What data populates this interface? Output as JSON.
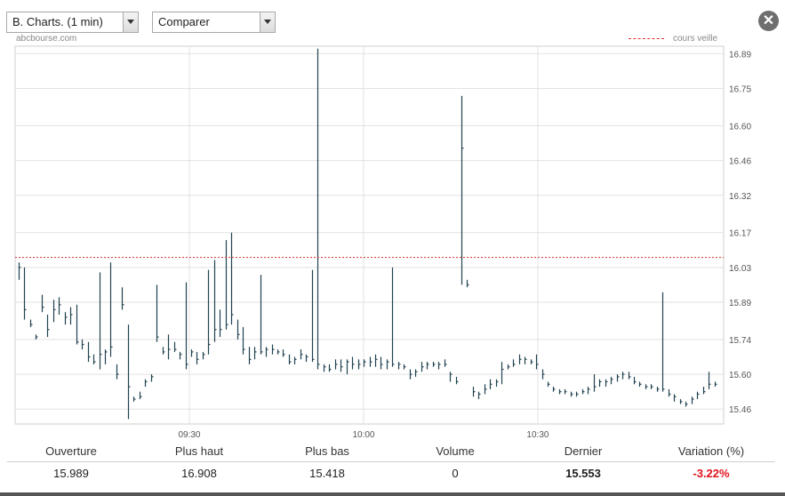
{
  "controls": {
    "period_select": "B. Charts. (1 min)",
    "compare_select": "Comparer"
  },
  "source": "abcbourse.com",
  "legend": {
    "label": "cours veille"
  },
  "chart_data": {
    "type": "bar",
    "subtype": "high-low-close (intraday, 1 min)",
    "y_ticks": [
      16.89,
      16.75,
      16.6,
      16.46,
      16.32,
      16.17,
      16.03,
      15.89,
      15.74,
      15.6,
      15.46
    ],
    "ylim": [
      15.4,
      16.92
    ],
    "x_ticks": [
      "09:30",
      "10:00",
      "10:30"
    ],
    "x_range_minutes": [
      0,
      122
    ],
    "x_tick_minutes": [
      30,
      60,
      90
    ],
    "previous_close": 16.07,
    "colors": {
      "series": "#21424f",
      "previous_close": "#d32f2f",
      "grid": "#e2e2e2"
    },
    "grid": true,
    "legend_position": "top-right",
    "bars_hlc": [
      [
        16.05,
        15.98,
        16.03
      ],
      [
        16.03,
        15.82,
        15.86
      ],
      [
        15.82,
        15.79,
        15.8
      ],
      [
        15.76,
        15.74,
        15.75
      ],
      [
        15.92,
        15.85,
        15.87
      ],
      [
        15.84,
        15.75,
        15.78
      ],
      [
        15.9,
        15.81,
        15.86
      ],
      [
        15.91,
        15.84,
        15.88
      ],
      [
        15.85,
        15.8,
        15.83
      ],
      [
        15.87,
        15.8,
        15.84
      ],
      [
        15.88,
        15.72,
        15.73
      ],
      [
        15.74,
        15.7,
        15.72
      ],
      [
        15.73,
        15.65,
        15.67
      ],
      [
        15.68,
        15.64,
        15.65
      ],
      [
        16.01,
        15.62,
        15.68
      ],
      [
        15.7,
        15.64,
        15.69
      ],
      [
        16.05,
        15.67,
        15.71
      ],
      [
        15.64,
        15.58,
        15.6
      ],
      [
        15.95,
        15.86,
        15.88
      ],
      [
        15.8,
        15.42,
        15.55
      ],
      [
        15.51,
        15.49,
        15.5
      ],
      [
        15.53,
        15.5,
        15.51
      ],
      [
        15.58,
        15.55,
        15.57
      ],
      [
        15.6,
        15.57,
        15.59
      ],
      [
        15.96,
        15.73,
        15.75
      ],
      [
        15.71,
        15.68,
        15.69
      ],
      [
        15.76,
        15.66,
        15.7
      ],
      [
        15.73,
        15.69,
        15.7
      ],
      [
        15.69,
        15.66,
        15.68
      ],
      [
        15.97,
        15.62,
        15.64
      ],
      [
        15.7,
        15.67,
        15.69
      ],
      [
        15.69,
        15.64,
        15.66
      ],
      [
        15.69,
        15.66,
        15.68
      ],
      [
        16.02,
        15.68,
        15.72
      ],
      [
        16.06,
        15.73,
        15.78
      ],
      [
        15.86,
        15.75,
        15.78
      ],
      [
        16.14,
        15.78,
        15.8
      ],
      [
        16.17,
        15.8,
        15.84
      ],
      [
        15.82,
        15.74,
        15.76
      ],
      [
        15.79,
        15.68,
        15.7
      ],
      [
        15.71,
        15.64,
        15.66
      ],
      [
        15.71,
        15.66,
        15.69
      ],
      [
        16.0,
        15.68,
        15.69
      ],
      [
        15.71,
        15.67,
        15.7
      ],
      [
        15.72,
        15.68,
        15.7
      ],
      [
        15.7,
        15.68,
        15.69
      ],
      [
        15.7,
        15.67,
        15.68
      ],
      [
        15.68,
        15.64,
        15.65
      ],
      [
        15.67,
        15.64,
        15.66
      ],
      [
        15.7,
        15.66,
        15.68
      ],
      [
        15.68,
        15.65,
        15.67
      ],
      [
        16.02,
        15.65,
        15.66
      ],
      [
        16.91,
        15.62,
        15.64
      ],
      [
        15.64,
        15.61,
        15.63
      ],
      [
        15.64,
        15.61,
        15.62
      ],
      [
        15.66,
        15.62,
        15.64
      ],
      [
        15.66,
        15.61,
        15.63
      ],
      [
        15.66,
        15.6,
        15.65
      ],
      [
        15.67,
        15.62,
        15.64
      ],
      [
        15.66,
        15.62,
        15.64
      ],
      [
        15.66,
        15.63,
        15.65
      ],
      [
        15.67,
        15.63,
        15.65
      ],
      [
        15.68,
        15.63,
        15.66
      ],
      [
        15.67,
        15.62,
        15.64
      ],
      [
        15.66,
        15.62,
        15.65
      ],
      [
        16.03,
        15.63,
        15.64
      ],
      [
        15.65,
        15.62,
        15.64
      ],
      [
        15.64,
        15.62,
        15.63
      ],
      [
        15.62,
        15.58,
        15.6
      ],
      [
        15.62,
        15.59,
        15.61
      ],
      [
        15.65,
        15.61,
        15.63
      ],
      [
        15.65,
        15.62,
        15.64
      ],
      [
        15.65,
        15.63,
        15.64
      ],
      [
        15.65,
        15.62,
        15.64
      ],
      [
        15.66,
        15.63,
        15.64
      ],
      [
        15.61,
        15.57,
        15.6
      ],
      [
        15.59,
        15.56,
        15.57
      ],
      [
        16.72,
        15.96,
        16.51
      ],
      [
        15.98,
        15.95,
        15.96
      ],
      [
        15.55,
        15.51,
        15.53
      ],
      [
        15.53,
        15.5,
        15.52
      ],
      [
        15.56,
        15.52,
        15.54
      ],
      [
        15.58,
        15.54,
        15.56
      ],
      [
        15.58,
        15.55,
        15.57
      ],
      [
        15.65,
        15.56,
        15.62
      ],
      [
        15.64,
        15.62,
        15.63
      ],
      [
        15.66,
        15.63,
        15.64
      ],
      [
        15.68,
        15.64,
        15.66
      ],
      [
        15.67,
        15.64,
        15.66
      ],
      [
        15.66,
        15.64,
        15.65
      ],
      [
        15.68,
        15.62,
        15.64
      ],
      [
        15.62,
        15.58,
        15.6
      ],
      [
        15.57,
        15.55,
        15.56
      ],
      [
        15.55,
        15.53,
        15.54
      ],
      [
        15.54,
        15.52,
        15.53
      ],
      [
        15.54,
        15.52,
        15.53
      ],
      [
        15.53,
        15.51,
        15.52
      ],
      [
        15.53,
        15.51,
        15.52
      ],
      [
        15.54,
        15.52,
        15.53
      ],
      [
        15.55,
        15.52,
        15.54
      ],
      [
        15.6,
        15.53,
        15.55
      ],
      [
        15.58,
        15.55,
        15.57
      ],
      [
        15.58,
        15.55,
        15.57
      ],
      [
        15.59,
        15.56,
        15.58
      ],
      [
        15.6,
        15.57,
        15.59
      ],
      [
        15.61,
        15.58,
        15.6
      ],
      [
        15.61,
        15.58,
        15.59
      ],
      [
        15.59,
        15.56,
        15.57
      ],
      [
        15.57,
        15.55,
        15.56
      ],
      [
        15.56,
        15.54,
        15.55
      ],
      [
        15.56,
        15.54,
        15.55
      ],
      [
        15.55,
        15.53,
        15.54
      ],
      [
        15.93,
        15.53,
        15.54
      ],
      [
        15.54,
        15.51,
        15.52
      ],
      [
        15.52,
        15.49,
        15.51
      ],
      [
        15.5,
        15.48,
        15.49
      ],
      [
        15.49,
        15.47,
        15.48
      ],
      [
        15.51,
        15.48,
        15.5
      ],
      [
        15.53,
        15.5,
        15.52
      ],
      [
        15.55,
        15.52,
        15.53
      ],
      [
        15.61,
        15.54,
        15.56
      ],
      [
        15.57,
        15.55,
        15.56
      ]
    ]
  },
  "stats": {
    "headers": [
      "Ouverture",
      "Plus haut",
      "Plus bas",
      "Volume",
      "Dernier",
      "Variation (%)"
    ],
    "values": [
      "15.989",
      "16.908",
      "15.418",
      "0",
      "15.553",
      "-3.22%"
    ]
  }
}
